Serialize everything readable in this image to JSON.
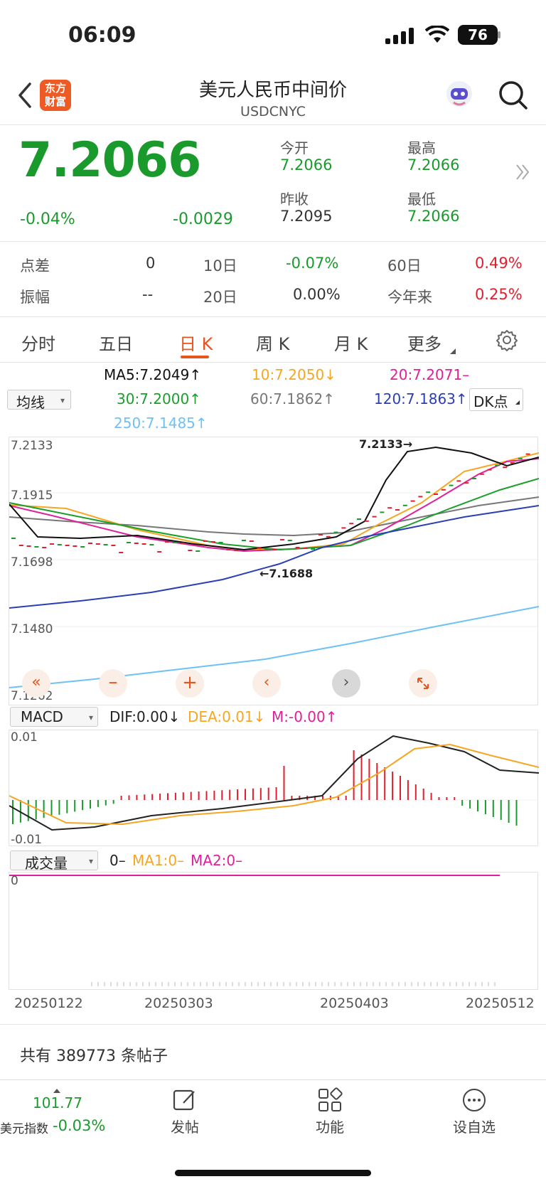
{
  "status": {
    "time": "06:09",
    "battery": "76"
  },
  "nav": {
    "title": "美元人民币中间价",
    "code": "USDCNYC",
    "logo_line1": "东方",
    "logo_line2": "财富"
  },
  "quote": {
    "price": "7.2066",
    "change_pct": "-0.04%",
    "change": "-0.0029",
    "open_label": "今开",
    "open": "7.2066",
    "high_label": "最高",
    "high": "7.2066",
    "prev_label": "昨收",
    "prev": "7.2095",
    "low_label": "最低",
    "low": "7.2066"
  },
  "stats": {
    "spread_label": "点差",
    "spread": "0",
    "d10_label": "10日",
    "d10": "-0.07%",
    "d60_label": "60日",
    "d60": "0.49%",
    "amp_label": "振幅",
    "amp": "--",
    "d20_label": "20日",
    "d20": "0.00%",
    "ytd_label": "今年来",
    "ytd": "0.25%"
  },
  "tabs": [
    "分时",
    "五日",
    "日 K",
    "周 K",
    "月 K",
    "更多"
  ],
  "ma": {
    "selector": "均线",
    "ma5": "MA5:7.2049↑",
    "ma10": "10:7.2050↓",
    "ma20": "20:7.2071–",
    "ma30": "30:7.2000↑",
    "ma60": "60:7.1862↑",
    "ma120": "120:7.1863↑",
    "ma250": "250:7.1485↑",
    "dk": "DK点"
  },
  "price_chart": {
    "y_labels": [
      "7.2133",
      "7.1915",
      "7.1698",
      "7.1480",
      "7.1262"
    ],
    "hi_note": "7.2133→",
    "lo_note": "←7.1688"
  },
  "macd": {
    "selector": "MACD",
    "dif": "DIF:0.00↓",
    "dea": "DEA:0.01↓",
    "m": "M:-0.00↑",
    "top": "0.01",
    "bottom": "-0.01"
  },
  "volume": {
    "selector": "成交量",
    "v": "0–",
    "ma1": "MA1:0–",
    "ma2": "MA2:0–",
    "zero": "0"
  },
  "dates": [
    "20250122",
    "20250303",
    "20250403",
    "20250512"
  ],
  "posts": "共有 389773 条帖子",
  "bottom": {
    "index_value": "101.77",
    "index_name": "美元指数",
    "index_change": "-0.03%",
    "post": "发帖",
    "func": "功能",
    "watch": "设自选"
  },
  "colors": {
    "up": "#e0202f",
    "down": "#1a9a2c",
    "accent": "#e8541e",
    "ma5": "#111111",
    "ma10": "#f5a623",
    "ma20": "#e0209a",
    "ma30": "#1aa02a",
    "ma60": "#777777",
    "ma120": "#2a3fb5",
    "ma250": "#6ec1f5"
  }
}
